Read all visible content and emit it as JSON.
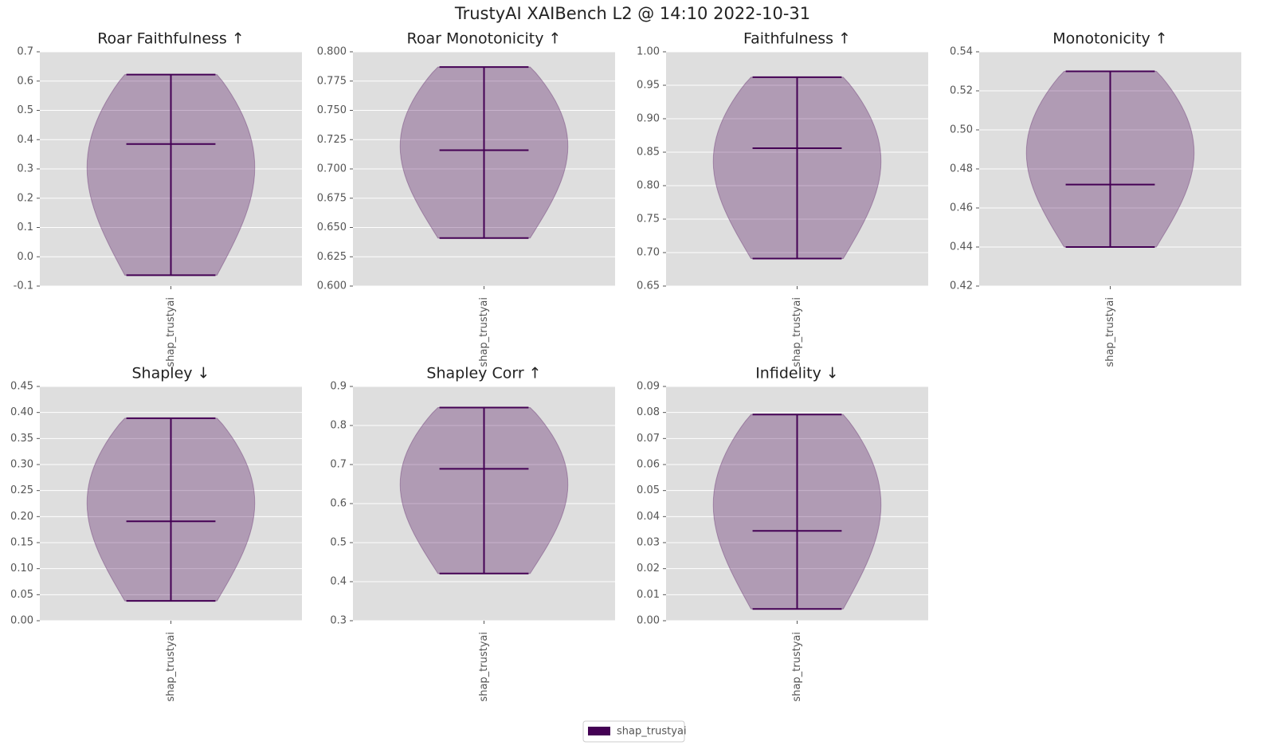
{
  "title": "TrustyAI XAIBench L2 @ 14:10 2022-10-31",
  "chart_data": [
    {
      "type": "violin",
      "title": "Roar Faithfulness ↑",
      "categories": [
        "shap_trustyai"
      ],
      "series": [
        {
          "name": "shap_trustyai",
          "color": "#440154",
          "min": [
            -0.063
          ],
          "median": [
            0.385
          ],
          "max": [
            0.622
          ]
        }
      ],
      "ylim": [
        -0.1,
        0.7
      ],
      "yticks": [
        -0.1,
        {
          "value": 0,
          "label": "0.0"
        },
        0.1,
        0.2,
        0.3,
        0.4,
        0.5,
        0.6,
        0.7
      ],
      "grid": true
    },
    {
      "type": "violin",
      "title": "Roar Monotonicity ↑",
      "categories": [
        "shap_trustyai"
      ],
      "series": [
        {
          "name": "shap_trustyai",
          "color": "#440154",
          "min": [
            0.641
          ],
          "median": [
            0.716
          ],
          "max": [
            0.787
          ]
        }
      ],
      "ylim": [
        0.6,
        0.8
      ],
      "yticks": [
        {
          "value": 0.6,
          "label": "0.600"
        },
        0.625,
        {
          "value": 0.65,
          "label": "0.650"
        },
        0.675,
        {
          "value": 0.7,
          "label": "0.700"
        },
        0.725,
        {
          "value": 0.75,
          "label": "0.750"
        },
        0.775,
        {
          "value": 0.8,
          "label": "0.800"
        }
      ],
      "grid": true
    },
    {
      "type": "violin",
      "title": "Faithfulness ↑",
      "categories": [
        "shap_trustyai"
      ],
      "series": [
        {
          "name": "shap_trustyai",
          "color": "#440154",
          "min": [
            0.691
          ],
          "median": [
            0.856
          ],
          "max": [
            0.962
          ]
        }
      ],
      "ylim": [
        0.65,
        1.0
      ],
      "yticks": [
        0.65,
        {
          "value": 0.7,
          "label": "0.70"
        },
        0.75,
        {
          "value": 0.8,
          "label": "0.80"
        },
        0.85,
        {
          "value": 0.9,
          "label": "0.90"
        },
        0.95,
        {
          "value": 1.0,
          "label": "1.00"
        }
      ],
      "grid": true
    },
    {
      "type": "violin",
      "title": "Monotonicity ↑",
      "categories": [
        "shap_trustyai"
      ],
      "series": [
        {
          "name": "shap_trustyai",
          "color": "#440154",
          "min": [
            0.44
          ],
          "median": [
            0.472
          ],
          "max": [
            0.53
          ]
        }
      ],
      "ylim": [
        0.42,
        0.54
      ],
      "yticks": [
        0.42,
        0.44,
        0.46,
        0.48,
        {
          "value": 0.5,
          "label": "0.50"
        },
        0.52,
        0.54
      ],
      "grid": true
    },
    {
      "type": "violin",
      "title": "Shapley ↓",
      "categories": [
        "shap_trustyai"
      ],
      "series": [
        {
          "name": "shap_trustyai",
          "color": "#440154",
          "min": [
            0.038
          ],
          "median": [
            0.191
          ],
          "max": [
            0.389
          ]
        }
      ],
      "ylim": [
        0,
        0.45
      ],
      "yticks": [
        {
          "value": 0,
          "label": "0.00"
        },
        0.05,
        {
          "value": 0.1,
          "label": "0.10"
        },
        0.15,
        {
          "value": 0.2,
          "label": "0.20"
        },
        0.25,
        {
          "value": 0.3,
          "label": "0.30"
        },
        0.35,
        {
          "value": 0.4,
          "label": "0.40"
        },
        0.45
      ],
      "grid": true
    },
    {
      "type": "violin",
      "title": "Shapley Corr ↑",
      "categories": [
        "shap_trustyai"
      ],
      "series": [
        {
          "name": "shap_trustyai",
          "color": "#440154",
          "min": [
            0.421
          ],
          "median": [
            0.689
          ],
          "max": [
            0.846
          ]
        }
      ],
      "ylim": [
        0.3,
        0.9
      ],
      "yticks": [
        0.3,
        0.4,
        0.5,
        0.6,
        0.7,
        0.8,
        0.9
      ],
      "grid": true
    },
    {
      "type": "violin",
      "title": "Infidelity ↓",
      "categories": [
        "shap_trustyai"
      ],
      "series": [
        {
          "name": "shap_trustyai",
          "color": "#440154",
          "min": [
            0.0045
          ],
          "median": [
            0.0345
          ],
          "max": [
            0.0792
          ]
        }
      ],
      "ylim": [
        0,
        0.09
      ],
      "yticks": [
        {
          "value": 0,
          "label": "0.00"
        },
        0.01,
        0.02,
        0.03,
        0.04,
        0.05,
        0.06,
        0.07,
        0.08,
        0.09
      ],
      "grid": true
    }
  ]
}
